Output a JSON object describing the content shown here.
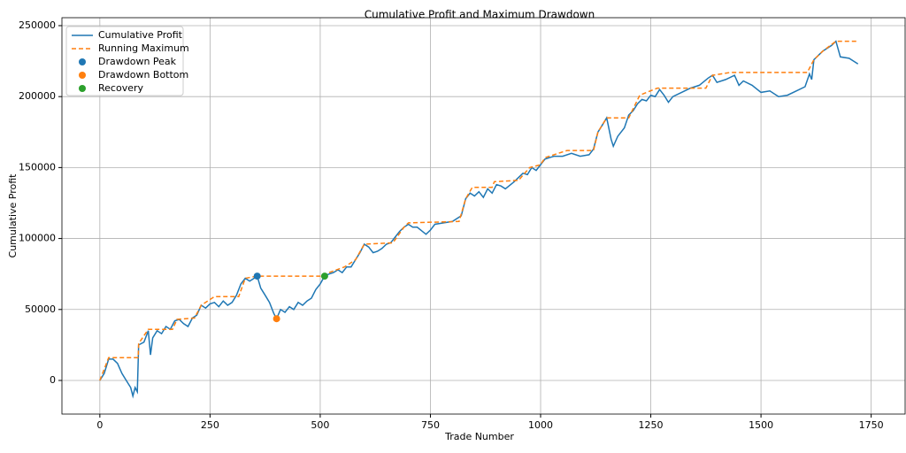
{
  "chart_data": {
    "type": "line",
    "title": "Cumulative Profit and Maximum Drawdown",
    "xlabel": "Trade Number",
    "ylabel": "Cumulative Profit",
    "xlim": [
      -86,
      1827
    ],
    "ylim": [
      -23700,
      255600
    ],
    "xticks": [
      0,
      250,
      500,
      750,
      1000,
      1250,
      1500,
      1750
    ],
    "yticks": [
      0,
      50000,
      100000,
      150000,
      200000,
      250000
    ],
    "grid": true,
    "legend": "upper left",
    "series": [
      {
        "name": "Cumulative Profit",
        "type": "line",
        "color": "#1f77b4",
        "linestyle": "solid",
        "x": [
          0,
          10,
          20,
          30,
          40,
          50,
          60,
          70,
          75,
          80,
          85,
          88,
          100,
          110,
          115,
          120,
          130,
          140,
          150,
          160,
          170,
          180,
          190,
          200,
          210,
          220,
          230,
          240,
          250,
          260,
          270,
          280,
          290,
          300,
          310,
          320,
          330,
          340,
          350,
          357,
          365,
          375,
          385,
          395,
          401,
          410,
          420,
          430,
          440,
          450,
          460,
          470,
          480,
          490,
          500,
          510,
          520,
          530,
          540,
          550,
          560,
          570,
          580,
          590,
          600,
          610,
          620,
          630,
          640,
          650,
          660,
          670,
          680,
          690,
          700,
          710,
          720,
          740,
          750,
          760,
          780,
          800,
          820,
          830,
          840,
          850,
          860,
          870,
          880,
          890,
          900,
          910,
          920,
          940,
          950,
          960,
          970,
          980,
          990,
          1000,
          1010,
          1020,
          1030,
          1050,
          1070,
          1090,
          1110,
          1120,
          1130,
          1140,
          1150,
          1160,
          1165,
          1175,
          1190,
          1200,
          1210,
          1220,
          1230,
          1240,
          1250,
          1260,
          1270,
          1280,
          1290,
          1300,
          1320,
          1340,
          1360,
          1380,
          1390,
          1400,
          1420,
          1440,
          1450,
          1460,
          1480,
          1500,
          1520,
          1540,
          1560,
          1580,
          1600,
          1610,
          1615,
          1620,
          1640,
          1660,
          1670,
          1680,
          1700,
          1720
        ],
        "values": [
          0,
          5000,
          15000,
          15000,
          12000,
          5000,
          0,
          -5000,
          -11000,
          -5000,
          -8000,
          25000,
          27000,
          35000,
          18000,
          30000,
          35000,
          33000,
          38000,
          36000,
          42000,
          43000,
          40000,
          38000,
          44000,
          46000,
          53000,
          51000,
          54000,
          55000,
          52000,
          56000,
          53000,
          55000,
          60000,
          68000,
          72000,
          70000,
          72000,
          73500,
          65000,
          60000,
          55000,
          47000,
          43500,
          50000,
          48000,
          52000,
          50000,
          55000,
          53000,
          56000,
          58000,
          64000,
          68000,
          73500,
          75000,
          76000,
          78000,
          76000,
          80000,
          80000,
          85000,
          90000,
          96000,
          94000,
          90000,
          91000,
          93000,
          96000,
          97000,
          101000,
          105000,
          108000,
          110000,
          108000,
          108000,
          103000,
          106000,
          110000,
          111000,
          112000,
          116000,
          128000,
          132000,
          130000,
          133000,
          129000,
          135000,
          132000,
          138000,
          137000,
          135000,
          140000,
          143000,
          146000,
          145000,
          150000,
          148000,
          152000,
          156000,
          157000,
          158000,
          158000,
          160000,
          158000,
          159000,
          163000,
          175000,
          180000,
          185000,
          170000,
          165000,
          172000,
          178000,
          187000,
          190000,
          195000,
          198000,
          197000,
          201000,
          200000,
          205000,
          201000,
          196000,
          200000,
          203000,
          206000,
          208000,
          213000,
          215000,
          210000,
          212000,
          215000,
          208000,
          211000,
          208000,
          203000,
          204000,
          200000,
          201000,
          204000,
          207000,
          216000,
          212000,
          226000,
          232000,
          236000,
          239000,
          228000,
          227000,
          223000
        ]
      },
      {
        "name": "Running Maximum",
        "type": "line",
        "color": "#ff7f0e",
        "linestyle": "dashed",
        "x": [
          0,
          20,
          87,
          88,
          110,
          165,
          175,
          215,
          230,
          260,
          315,
          330,
          357,
          510,
          520,
          555,
          580,
          600,
          665,
          690,
          700,
          815,
          830,
          845,
          890,
          895,
          950,
          975,
          1000,
          1010,
          1040,
          1060,
          1120,
          1130,
          1150,
          1200,
          1225,
          1265,
          1375,
          1390,
          1430,
          1605,
          1620,
          1640,
          1670,
          1720
        ],
        "values": [
          0,
          16000,
          16000,
          26000,
          36000,
          36000,
          43000,
          44000,
          53000,
          59000,
          59000,
          72000,
          73500,
          73500,
          76000,
          80000,
          85000,
          96000,
          97000,
          108000,
          111000,
          112000,
          128000,
          136000,
          136000,
          140000,
          141000,
          150000,
          152000,
          157000,
          160000,
          162000,
          162000,
          175000,
          185000,
          185000,
          201000,
          206000,
          206000,
          215000,
          217000,
          217000,
          226000,
          232000,
          239000,
          239000
        ]
      },
      {
        "name": "Drawdown Peak",
        "type": "scatter",
        "color": "#1f77b4",
        "x": [
          357
        ],
        "values": [
          73500
        ]
      },
      {
        "name": "Drawdown Bottom",
        "type": "scatter",
        "color": "#ff7f0e",
        "x": [
          401
        ],
        "values": [
          43500
        ]
      },
      {
        "name": "Recovery",
        "type": "scatter",
        "color": "#2ca02c",
        "x": [
          510
        ],
        "values": [
          73500
        ]
      }
    ]
  }
}
